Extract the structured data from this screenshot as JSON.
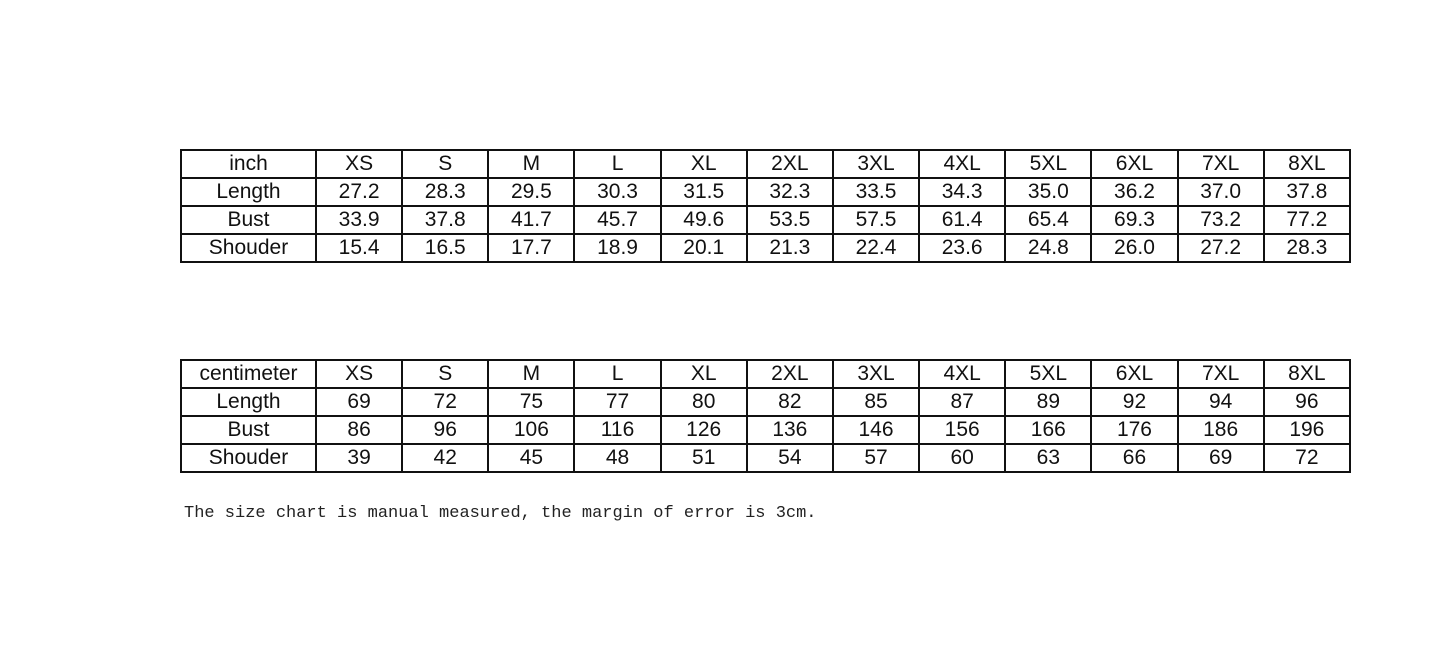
{
  "tables": [
    {
      "unit": "inch",
      "sizes": [
        "XS",
        "S",
        "M",
        "L",
        "XL",
        "2XL",
        "3XL",
        "4XL",
        "5XL",
        "6XL",
        "7XL",
        "8XL"
      ],
      "rows": [
        {
          "label": "Length",
          "values": [
            "27.2",
            "28.3",
            "29.5",
            "30.3",
            "31.5",
            "32.3",
            "33.5",
            "34.3",
            "35.0",
            "36.2",
            "37.0",
            "37.8"
          ]
        },
        {
          "label": "Bust",
          "values": [
            "33.9",
            "37.8",
            "41.7",
            "45.7",
            "49.6",
            "53.5",
            "57.5",
            "61.4",
            "65.4",
            "69.3",
            "73.2",
            "77.2"
          ]
        },
        {
          "label": "Shouder",
          "values": [
            "15.4",
            "16.5",
            "17.7",
            "18.9",
            "20.1",
            "21.3",
            "22.4",
            "23.6",
            "24.8",
            "26.0",
            "27.2",
            "28.3"
          ]
        }
      ]
    },
    {
      "unit": "centimeter",
      "sizes": [
        "XS",
        "S",
        "M",
        "L",
        "XL",
        "2XL",
        "3XL",
        "4XL",
        "5XL",
        "6XL",
        "7XL",
        "8XL"
      ],
      "rows": [
        {
          "label": "Length",
          "values": [
            "69",
            "72",
            "75",
            "77",
            "80",
            "82",
            "85",
            "87",
            "89",
            "92",
            "94",
            "96"
          ]
        },
        {
          "label": "Bust",
          "values": [
            "86",
            "96",
            "106",
            "116",
            "126",
            "136",
            "146",
            "156",
            "166",
            "176",
            "186",
            "196"
          ]
        },
        {
          "label": "Shouder",
          "values": [
            "39",
            "42",
            "45",
            "48",
            "51",
            "54",
            "57",
            "60",
            "63",
            "66",
            "69",
            "72"
          ]
        }
      ]
    }
  ],
  "note": "The size chart is manual measured, the margin of error is 3cm."
}
